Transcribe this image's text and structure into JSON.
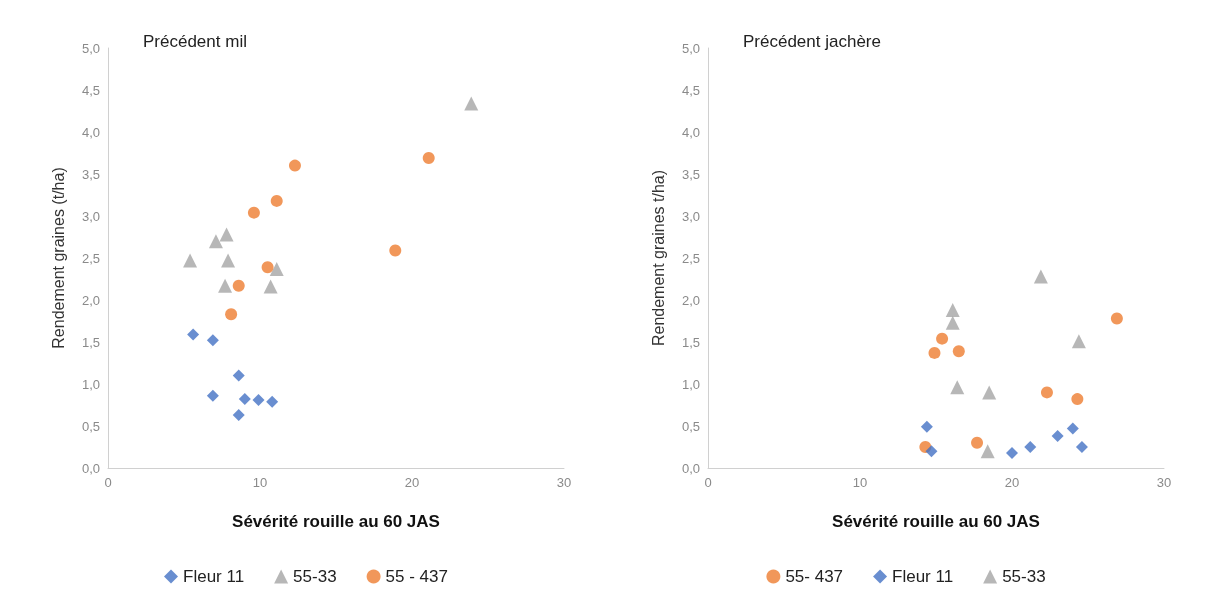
{
  "chart_data": [
    {
      "type": "scatter",
      "title": "Précédent mil",
      "xlabel": "Sévérité rouille au 60 JAS",
      "ylabel": "Rendement graines (t/ha)",
      "xlim": [
        0,
        30
      ],
      "xticks": [
        0,
        10,
        20,
        30
      ],
      "ylim": [
        0,
        5
      ],
      "yticks": [
        {
          "value": 0,
          "label": "0,0"
        },
        {
          "value": 0.5,
          "label": "0,5"
        },
        {
          "value": 1,
          "label": "1,0"
        },
        {
          "value": 1.5,
          "label": "1,5"
        },
        {
          "value": 2,
          "label": "2,0"
        },
        {
          "value": 2.5,
          "label": "2,5"
        },
        {
          "value": 3,
          "label": "3,0"
        },
        {
          "value": 3.5,
          "label": "3,5"
        },
        {
          "value": 4,
          "label": "4,0"
        },
        {
          "value": 4.5,
          "label": "4,5"
        },
        {
          "value": 5,
          "label": "5,0"
        }
      ],
      "grid": false,
      "legend": "bottom",
      "series": [
        {
          "name": "Fleur 11",
          "color": "#4472c4",
          "marker": "diamond",
          "x": [
            5.6,
            6.9,
            6.9,
            8.6,
            8.6,
            9.0,
            9.9,
            10.8
          ],
          "values": [
            1.59,
            1.52,
            0.86,
            1.1,
            0.63,
            0.82,
            0.81,
            0.79
          ]
        },
        {
          "name": "55-33",
          "color": "#a5a5a5",
          "marker": "triangle",
          "x": [
            5.4,
            7.1,
            7.8,
            7.9,
            7.7,
            11.1,
            10.7,
            23.9
          ],
          "values": [
            2.47,
            2.7,
            2.78,
            2.47,
            2.17,
            2.37,
            2.16,
            4.34
          ]
        },
        {
          "name": "55 - 437",
          "color": "#ed7d31",
          "marker": "circle",
          "x": [
            12.3,
            11.1,
            9.6,
            10.5,
            8.6,
            8.1,
            21.1,
            18.9
          ],
          "values": [
            3.6,
            3.18,
            3.04,
            2.39,
            2.17,
            1.83,
            3.69,
            2.59
          ]
        }
      ]
    },
    {
      "type": "scatter",
      "title": "Précédent jachère",
      "xlabel": "Sévérité rouille au 60 JAS",
      "ylabel": "Rendement graines t/ha)",
      "xlim": [
        0,
        30
      ],
      "xticks": [
        0,
        10,
        20,
        30
      ],
      "ylim": [
        0,
        5
      ],
      "yticks": [
        {
          "value": 0,
          "label": "0,0"
        },
        {
          "value": 0.5,
          "label": "0,5"
        },
        {
          "value": 1,
          "label": "1,0"
        },
        {
          "value": 1.5,
          "label": "1,5"
        },
        {
          "value": 2,
          "label": "2,0"
        },
        {
          "value": 2.5,
          "label": "2,5"
        },
        {
          "value": 3,
          "label": "3,0"
        },
        {
          "value": 3.5,
          "label": "3,5"
        },
        {
          "value": 4,
          "label": "4,0"
        },
        {
          "value": 4.5,
          "label": "4,5"
        },
        {
          "value": 5,
          "label": "5,0"
        }
      ],
      "grid": false,
      "legend": "bottom",
      "series": [
        {
          "name": "55- 437",
          "color": "#ed7d31",
          "marker": "circle",
          "x": [
            14.3,
            14.9,
            15.4,
            16.5,
            17.7,
            22.3,
            24.3,
            26.9
          ],
          "values": [
            0.25,
            1.37,
            1.54,
            1.39,
            0.3,
            0.9,
            0.82,
            1.78
          ]
        },
        {
          "name": "Fleur 11",
          "color": "#4472c4",
          "marker": "diamond",
          "x": [
            14.4,
            14.7,
            20.0,
            21.2,
            23.0,
            24.0,
            24.6
          ],
          "values": [
            0.49,
            0.2,
            0.18,
            0.25,
            0.38,
            0.47,
            0.25
          ]
        },
        {
          "name": "55-33",
          "color": "#a5a5a5",
          "marker": "triangle",
          "x": [
            16.1,
            16.1,
            16.4,
            18.5,
            18.4,
            21.9,
            24.4
          ],
          "values": [
            1.88,
            1.73,
            0.96,
            0.9,
            0.2,
            2.28,
            1.51
          ]
        }
      ]
    }
  ]
}
